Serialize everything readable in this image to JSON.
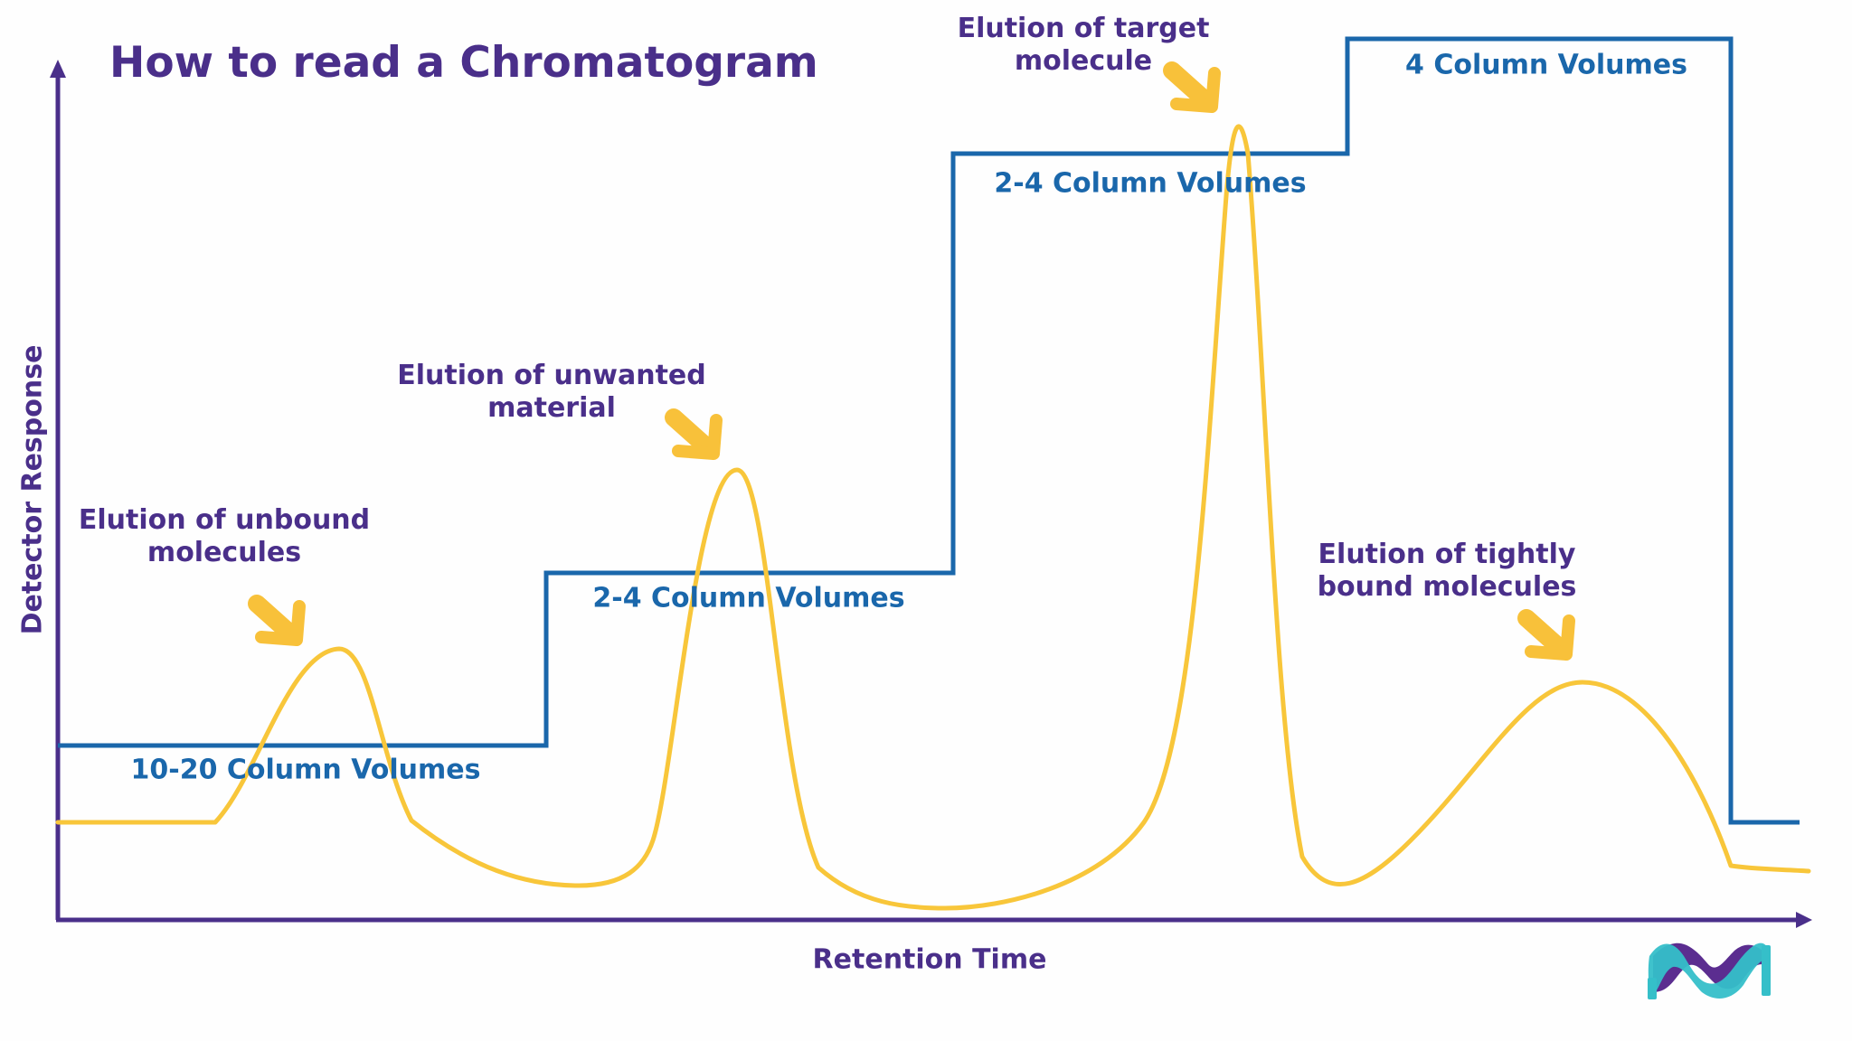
{
  "title": "How to read a Chromatogram",
  "axes": {
    "y_label": "Detector Response",
    "x_label": "Retention Time"
  },
  "annotations": {
    "unbound": {
      "line1": "Elution of unbound",
      "line2": "molecules"
    },
    "unwanted": {
      "line1": "Elution of unwanted",
      "line2": "material"
    },
    "target": {
      "line1": "Elution of target",
      "line2": "molecule"
    },
    "tightly_bound": {
      "line1": "Elution of tightly",
      "line2": "bound molecules"
    }
  },
  "gradient_steps": {
    "step1": "10-20 Column Volumes",
    "step2": "2-4 Column Volumes",
    "step3": "2-4 Column Volumes",
    "step4": "4 Column Volumes"
  },
  "colors": {
    "title_text": "#4a2f8a",
    "axis": "#4a2f8a",
    "annotation_text": "#4a2f8a",
    "step_line": "#1a67ab",
    "step_text": "#1a67ab",
    "trace": "#f8c63a",
    "arrow": "#f8c13a",
    "logo_purple": "#5b2d90",
    "logo_teal": "#35bfc9"
  },
  "logo": "merck-m-logo-icon"
}
